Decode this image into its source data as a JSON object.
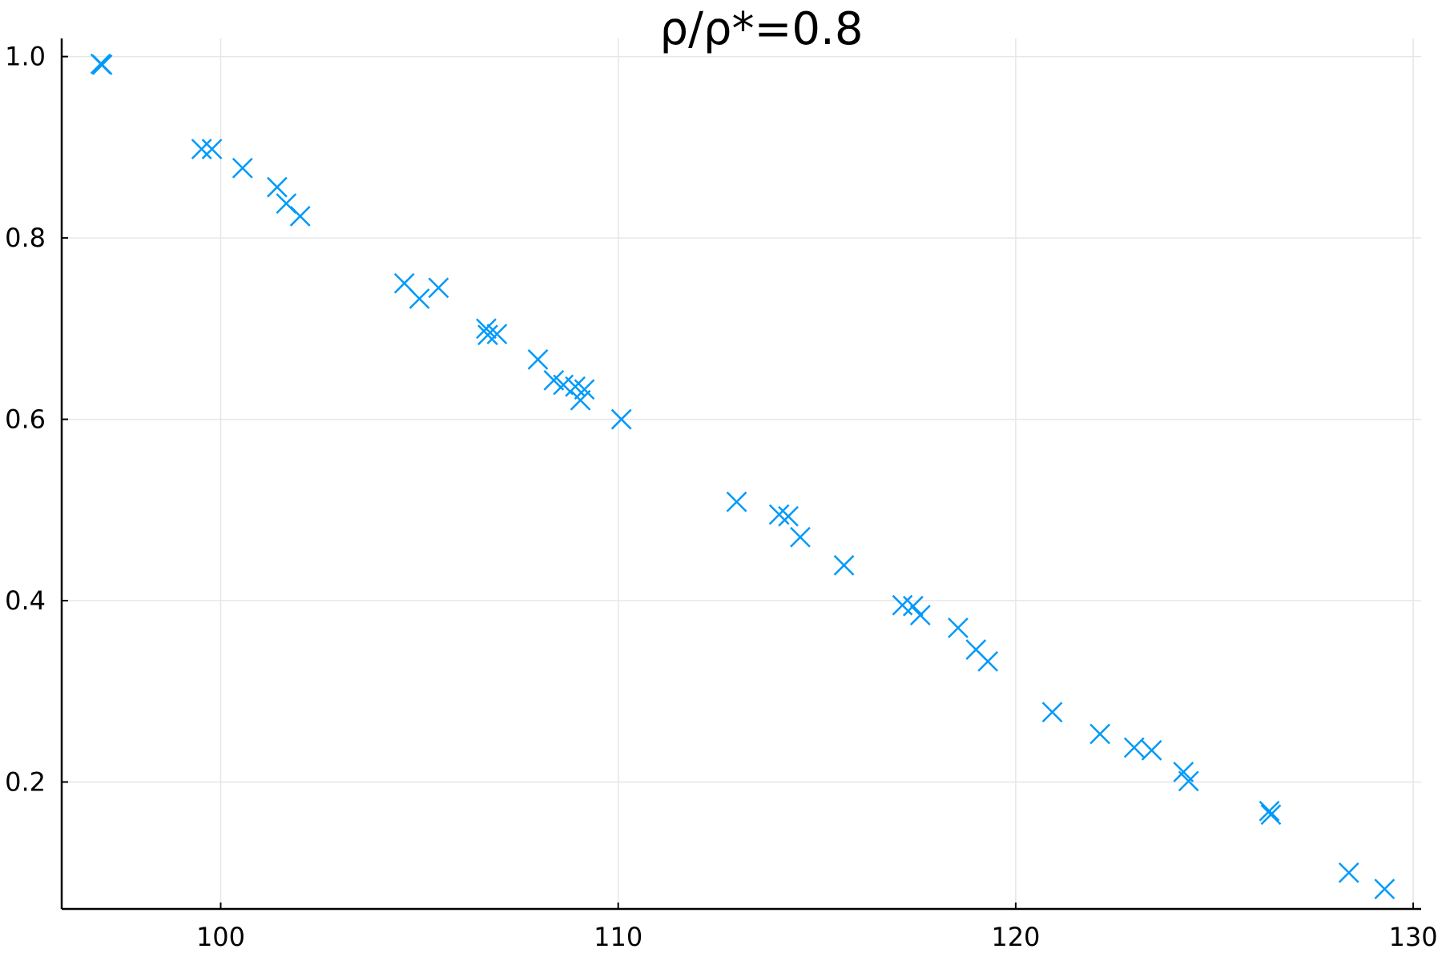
{
  "chart_data": {
    "type": "scatter",
    "title": "ρ/ρ*=0.8",
    "xlabel": "",
    "ylabel": "",
    "xlim": [
      96.0,
      130.2
    ],
    "ylim": [
      0.06,
      1.02
    ],
    "x_ticks": [
      100,
      110,
      120,
      130
    ],
    "x_tick_labels": [
      "100",
      "110",
      "120",
      "130"
    ],
    "y_ticks": [
      0.2,
      0.4,
      0.6,
      0.8,
      1.0
    ],
    "y_tick_labels": [
      "0.2",
      "0.4",
      "0.6",
      "0.8",
      "1.0"
    ],
    "grid": true,
    "legend": "none",
    "marker": "x",
    "series_color": "#009AFA",
    "series": [
      {
        "points": [
          [
            96.98,
            0.992
          ],
          [
            97.02,
            0.991
          ],
          [
            99.52,
            0.898
          ],
          [
            99.78,
            0.898
          ],
          [
            100.55,
            0.877
          ],
          [
            101.42,
            0.856
          ],
          [
            101.65,
            0.838
          ],
          [
            102.0,
            0.824
          ],
          [
            104.62,
            0.75
          ],
          [
            105.0,
            0.733
          ],
          [
            105.48,
            0.745
          ],
          [
            106.68,
            0.7
          ],
          [
            106.72,
            0.693
          ],
          [
            106.95,
            0.694
          ],
          [
            107.98,
            0.666
          ],
          [
            108.38,
            0.643
          ],
          [
            108.62,
            0.638
          ],
          [
            108.92,
            0.636
          ],
          [
            109.05,
            0.621
          ],
          [
            109.15,
            0.633
          ],
          [
            110.08,
            0.6
          ],
          [
            112.98,
            0.509
          ],
          [
            114.05,
            0.495
          ],
          [
            114.28,
            0.493
          ],
          [
            114.58,
            0.47
          ],
          [
            115.68,
            0.439
          ],
          [
            117.15,
            0.395
          ],
          [
            117.42,
            0.394
          ],
          [
            117.6,
            0.384
          ],
          [
            118.55,
            0.37
          ],
          [
            119.0,
            0.346
          ],
          [
            119.3,
            0.333
          ],
          [
            120.92,
            0.277
          ],
          [
            122.12,
            0.253
          ],
          [
            122.98,
            0.238
          ],
          [
            123.42,
            0.235
          ],
          [
            124.22,
            0.211
          ],
          [
            124.35,
            0.201
          ],
          [
            126.38,
            0.168
          ],
          [
            126.42,
            0.164
          ],
          [
            128.38,
            0.1
          ],
          [
            129.28,
            0.082
          ]
        ]
      }
    ]
  }
}
